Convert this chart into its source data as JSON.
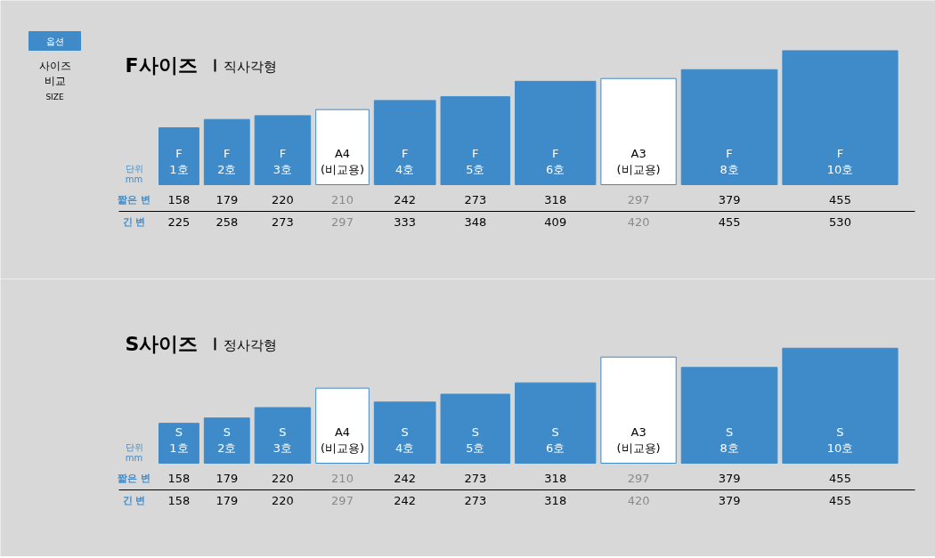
{
  "chart_data": [
    {
      "type": "other",
      "title": "F사이즈",
      "subtitle": "직사각형",
      "annotations": [
        "옵션",
        "사이즈\n비교",
        "SIZE",
        "단위\nmm"
      ],
      "data_labels": true,
      "categories": [
        "F\n1호",
        "F\n2호",
        "F\n3호",
        "A4\n(비교용)",
        "F\n4호",
        "F\n5호",
        "F\n6호",
        "A3\n(비교용)",
        "F\n8호",
        "F\n10호"
      ],
      "colors": [
        "#3f8bc9",
        "#3f8bc9",
        "#3f8bc9",
        "#ffffff",
        "#3f8bc9",
        "#3f8bc9",
        "#3f8bc9",
        "#ffffff",
        "#3f8bc9",
        "#3f8bc9"
      ],
      "series": [
        {
          "name": "짧은 변",
          "values": [
            158,
            179,
            220,
            210,
            242,
            273,
            318,
            297,
            379,
            455
          ]
        },
        {
          "name": "긴 변",
          "values": [
            225,
            258,
            273,
            297,
            333,
            348,
            409,
            420,
            455,
            530
          ]
        }
      ]
    },
    {
      "type": "other",
      "title": "S사이즈",
      "subtitle": "정사각형",
      "annotations": [
        "단위\nmm"
      ],
      "data_labels": true,
      "categories": [
        "S\n1호",
        "S\n2호",
        "S\n3호",
        "A4\n(비교용)",
        "S\n4호",
        "S\n5호",
        "S\n6호",
        "A3\n(비교용)",
        "S\n8호",
        "S\n10호"
      ],
      "colors": [
        "#3f8bc9",
        "#3f8bc9",
        "#3f8bc9",
        "#ffffff",
        "#3f8bc9",
        "#3f8bc9",
        "#3f8bc9",
        "#ffffff",
        "#3f8bc9",
        "#3f8bc9"
      ],
      "series": [
        {
          "name": "짧은 변",
          "values": [
            158,
            179,
            220,
            210,
            242,
            273,
            318,
            297,
            379,
            455
          ]
        },
        {
          "name": "긴 변",
          "values": [
            158,
            179,
            220,
            297,
            242,
            273,
            318,
            420,
            379,
            455
          ]
        }
      ]
    }
  ]
}
